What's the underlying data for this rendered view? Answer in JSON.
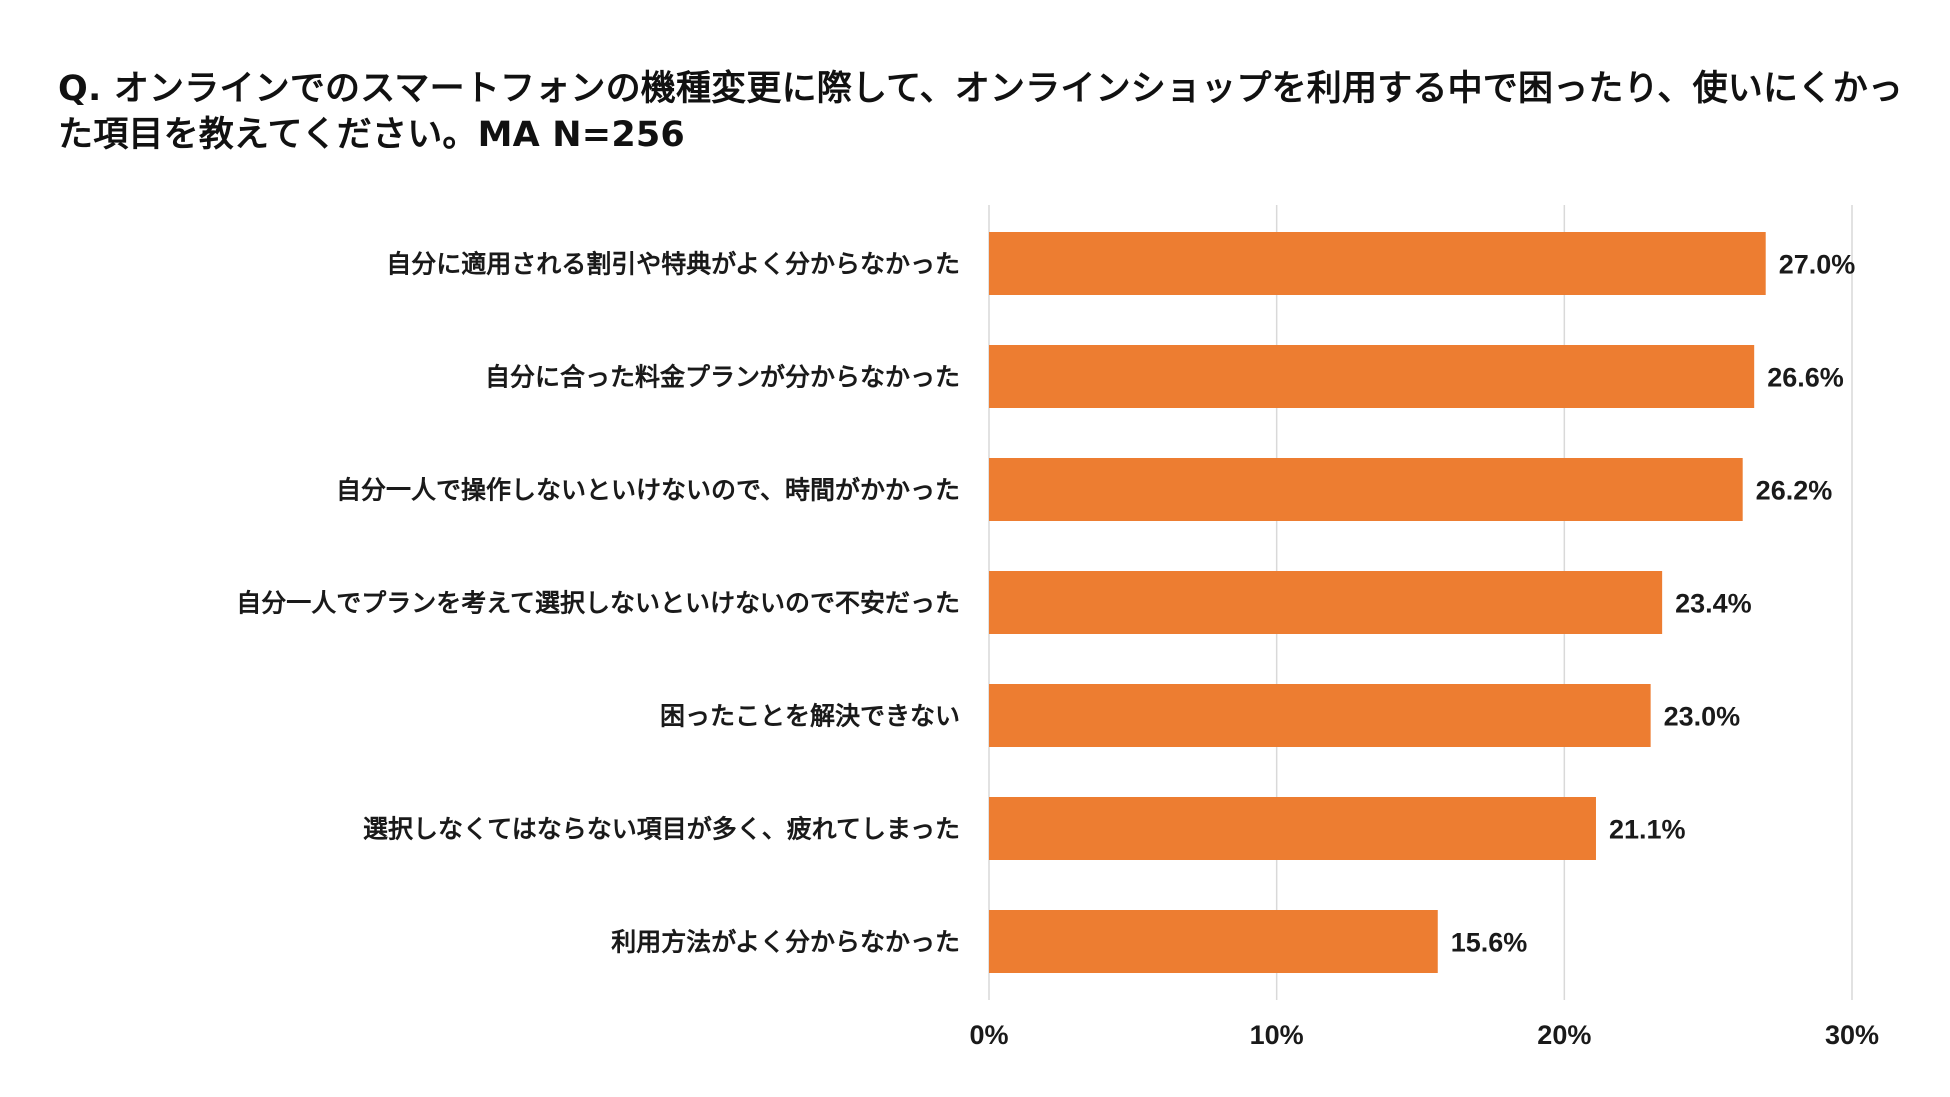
{
  "chart_data": {
    "type": "bar",
    "orientation": "horizontal",
    "title": "Q. オンラインでのスマートフォンの機種変更に際して、オンラインショップを利用する中で困ったり、使いにくかった項目を教えてください。MA N=256",
    "categories": [
      "自分に適用される割引や特典がよく分からなかった",
      "自分に合った料金プランが分からなかった",
      "自分一人で操作しないといけないので、時間がかかった",
      "自分一人でプランを考えて選択しないといけないので不安だった",
      "困ったことを解決できない",
      "選択しなくてはならない項目が多く、疲れてしまった",
      "利用方法がよく分からなかった"
    ],
    "values": [
      27.0,
      26.6,
      26.2,
      23.4,
      23.0,
      21.1,
      15.6
    ],
    "value_labels": [
      "27.0%",
      "26.6%",
      "26.2%",
      "23.4%",
      "23.0%",
      "21.1%",
      "15.6%"
    ],
    "xlim": [
      0,
      30
    ],
    "xticks": [
      0,
      10,
      20,
      30
    ],
    "xtick_labels": [
      "0%",
      "10%",
      "20%",
      "30%"
    ],
    "xlabel": "",
    "ylabel": "",
    "grid": true,
    "legend": "none",
    "bar_color": "#ED7D31"
  }
}
